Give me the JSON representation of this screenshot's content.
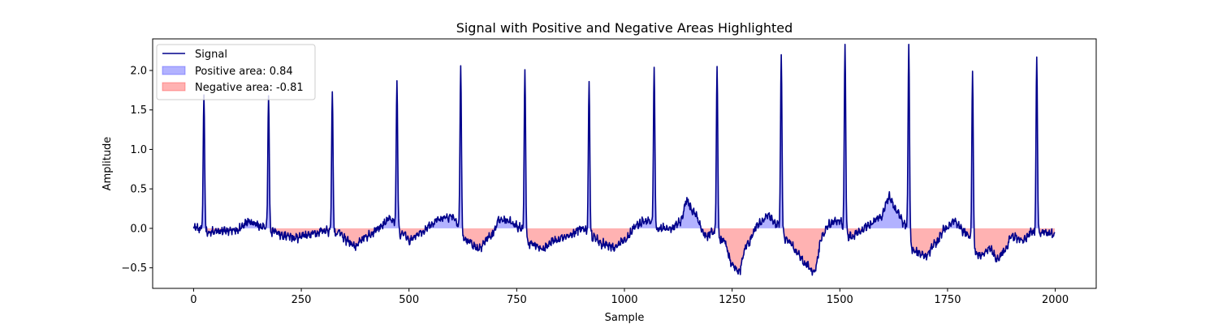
{
  "chart_data": {
    "type": "area",
    "title": "Signal with Positive and Negative Areas Highlighted",
    "xlabel": "Sample",
    "ylabel": "Amplitude",
    "xlim": [
      -95,
      2095
    ],
    "ylim": [
      -0.76,
      2.4
    ],
    "xticks": [
      0,
      250,
      500,
      750,
      1000,
      1250,
      1500,
      1750,
      2000
    ],
    "yticks": [
      -0.5,
      0.0,
      0.5,
      1.0,
      1.5,
      2.0
    ],
    "xtick_labels": [
      "0",
      "250",
      "500",
      "750",
      "1000",
      "1250",
      "1500",
      "1750",
      "2000"
    ],
    "ytick_labels": [
      "−0.5",
      "0.0",
      "0.5",
      "1.0",
      "1.5",
      "2.0"
    ],
    "n_samples": 2000,
    "grid": false,
    "legend_position": "upper-left",
    "series": [
      {
        "name": "Signal",
        "color": "#00008b",
        "kind": "line"
      },
      {
        "name": "Positive area: 0.84",
        "color": "#0000ff",
        "kind": "fill-positive",
        "value": 0.84
      },
      {
        "name": "Negative area: -0.81",
        "color": "#ff0000",
        "kind": "fill-negative",
        "value": -0.81
      }
    ],
    "peaks": [
      {
        "x": 24,
        "y": 1.69
      },
      {
        "x": 174,
        "y": 1.68
      },
      {
        "x": 322,
        "y": 1.73
      },
      {
        "x": 472,
        "y": 1.87
      },
      {
        "x": 620,
        "y": 2.06
      },
      {
        "x": 769,
        "y": 2.01
      },
      {
        "x": 918,
        "y": 1.86
      },
      {
        "x": 1069,
        "y": 2.04
      },
      {
        "x": 1215,
        "y": 2.05
      },
      {
        "x": 1364,
        "y": 2.2
      },
      {
        "x": 1512,
        "y": 2.33
      },
      {
        "x": 1660,
        "y": 2.33
      },
      {
        "x": 1808,
        "y": 1.99
      },
      {
        "x": 1957,
        "y": 2.17
      }
    ],
    "baseline": [
      [
        0,
        0.0
      ],
      [
        20,
        0.0
      ],
      [
        35,
        -0.05
      ],
      [
        60,
        -0.03
      ],
      [
        100,
        -0.02
      ],
      [
        130,
        0.08
      ],
      [
        160,
        0.02
      ],
      [
        185,
        -0.02
      ],
      [
        205,
        -0.08
      ],
      [
        240,
        -0.12
      ],
      [
        280,
        -0.06
      ],
      [
        305,
        -0.03
      ],
      [
        335,
        -0.05
      ],
      [
        355,
        -0.15
      ],
      [
        375,
        -0.22
      ],
      [
        400,
        -0.1
      ],
      [
        430,
        0.0
      ],
      [
        455,
        0.12
      ],
      [
        485,
        -0.05
      ],
      [
        500,
        -0.15
      ],
      [
        530,
        -0.05
      ],
      [
        550,
        0.05
      ],
      [
        570,
        0.12
      ],
      [
        600,
        0.15
      ],
      [
        635,
        -0.15
      ],
      [
        660,
        -0.25
      ],
      [
        690,
        -0.1
      ],
      [
        710,
        0.1
      ],
      [
        730,
        0.1
      ],
      [
        755,
        0.02
      ],
      [
        785,
        -0.2
      ],
      [
        810,
        -0.25
      ],
      [
        840,
        -0.15
      ],
      [
        870,
        -0.1
      ],
      [
        900,
        0.0
      ],
      [
        930,
        -0.1
      ],
      [
        950,
        -0.2
      ],
      [
        975,
        -0.25
      ],
      [
        1000,
        -0.15
      ],
      [
        1030,
        0.05
      ],
      [
        1050,
        0.1
      ],
      [
        1085,
        0.0
      ],
      [
        1110,
        0.0
      ],
      [
        1130,
        0.1
      ],
      [
        1145,
        0.35
      ],
      [
        1160,
        0.2
      ],
      [
        1190,
        -0.1
      ],
      [
        1205,
        -0.05
      ],
      [
        1230,
        -0.15
      ],
      [
        1250,
        -0.45
      ],
      [
        1265,
        -0.55
      ],
      [
        1285,
        -0.2
      ],
      [
        1310,
        0.05
      ],
      [
        1335,
        0.15
      ],
      [
        1355,
        0.05
      ],
      [
        1380,
        -0.15
      ],
      [
        1400,
        -0.3
      ],
      [
        1420,
        -0.45
      ],
      [
        1440,
        -0.55
      ],
      [
        1460,
        -0.1
      ],
      [
        1475,
        0.05
      ],
      [
        1495,
        0.1
      ],
      [
        1525,
        -0.1
      ],
      [
        1545,
        -0.05
      ],
      [
        1570,
        0.05
      ],
      [
        1595,
        0.15
      ],
      [
        1615,
        0.4
      ],
      [
        1635,
        0.2
      ],
      [
        1650,
        0.05
      ],
      [
        1675,
        -0.3
      ],
      [
        1700,
        -0.35
      ],
      [
        1720,
        -0.2
      ],
      [
        1745,
        0.0
      ],
      [
        1765,
        0.1
      ],
      [
        1790,
        -0.05
      ],
      [
        1825,
        -0.35
      ],
      [
        1850,
        -0.25
      ],
      [
        1865,
        -0.4
      ],
      [
        1880,
        -0.3
      ],
      [
        1900,
        -0.1
      ],
      [
        1925,
        -0.15
      ],
      [
        1945,
        -0.05
      ],
      [
        1975,
        -0.05
      ],
      [
        1999,
        -0.08
      ]
    ]
  }
}
